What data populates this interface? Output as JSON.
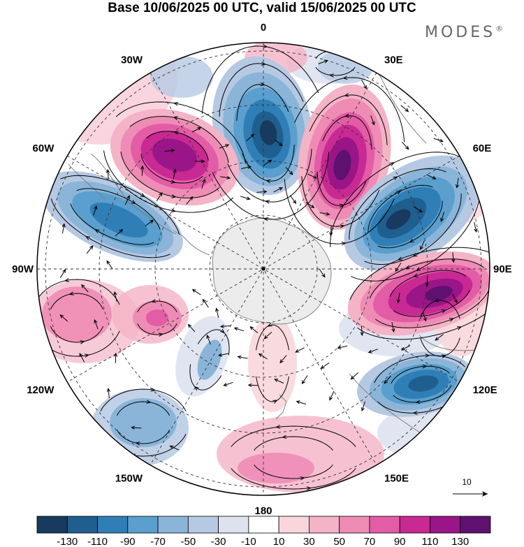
{
  "title": "Base 10/06/2025 00 UTC, valid 15/06/2025 00 UTC",
  "brand": "MODES",
  "brand_mark": "®",
  "longitude_labels": [
    {
      "text": "0",
      "lon": 0
    },
    {
      "text": "30E",
      "lon": 30
    },
    {
      "text": "60E",
      "lon": 60
    },
    {
      "text": "90E",
      "lon": 90
    },
    {
      "text": "120E",
      "lon": 120
    },
    {
      "text": "150E",
      "lon": 150
    },
    {
      "text": "180",
      "lon": 180
    },
    {
      "text": "150W",
      "lon": -150
    },
    {
      "text": "120W",
      "lon": -120
    },
    {
      "text": "90W",
      "lon": -90
    },
    {
      "text": "60W",
      "lon": -60
    },
    {
      "text": "30W",
      "lon": -30
    }
  ],
  "reference_vector_label": "10",
  "colorbar": {
    "colors": [
      "#173a5e",
      "#1f5f8f",
      "#2f7fb6",
      "#5a9fcd",
      "#8ab5d9",
      "#b6c9e3",
      "#dde2ef",
      "#ffffff",
      "#f8d6dc",
      "#f4b3c6",
      "#ee8cb5",
      "#e25ca6",
      "#c82993",
      "#9a1587",
      "#5e116f"
    ],
    "ticks": [
      "-130",
      "-110",
      "-90",
      "-70",
      "-50",
      "-30",
      "-10",
      "10",
      "30",
      "50",
      "70",
      "90",
      "110",
      "130"
    ]
  },
  "anomaly_centers": [
    {
      "lon": 0,
      "value": -120
    },
    {
      "lon": 30,
      "value": 120
    },
    {
      "lon": 58,
      "value": -110
    },
    {
      "lon": 95,
      "value": 115
    },
    {
      "lon": 128,
      "value": -100
    },
    {
      "lon": 175,
      "value": 60
    },
    {
      "lon": -145,
      "value": -55
    },
    {
      "lon": -98,
      "value": 55
    },
    {
      "lon": -62,
      "value": -80
    },
    {
      "lon": -35,
      "value": 110
    }
  ]
}
